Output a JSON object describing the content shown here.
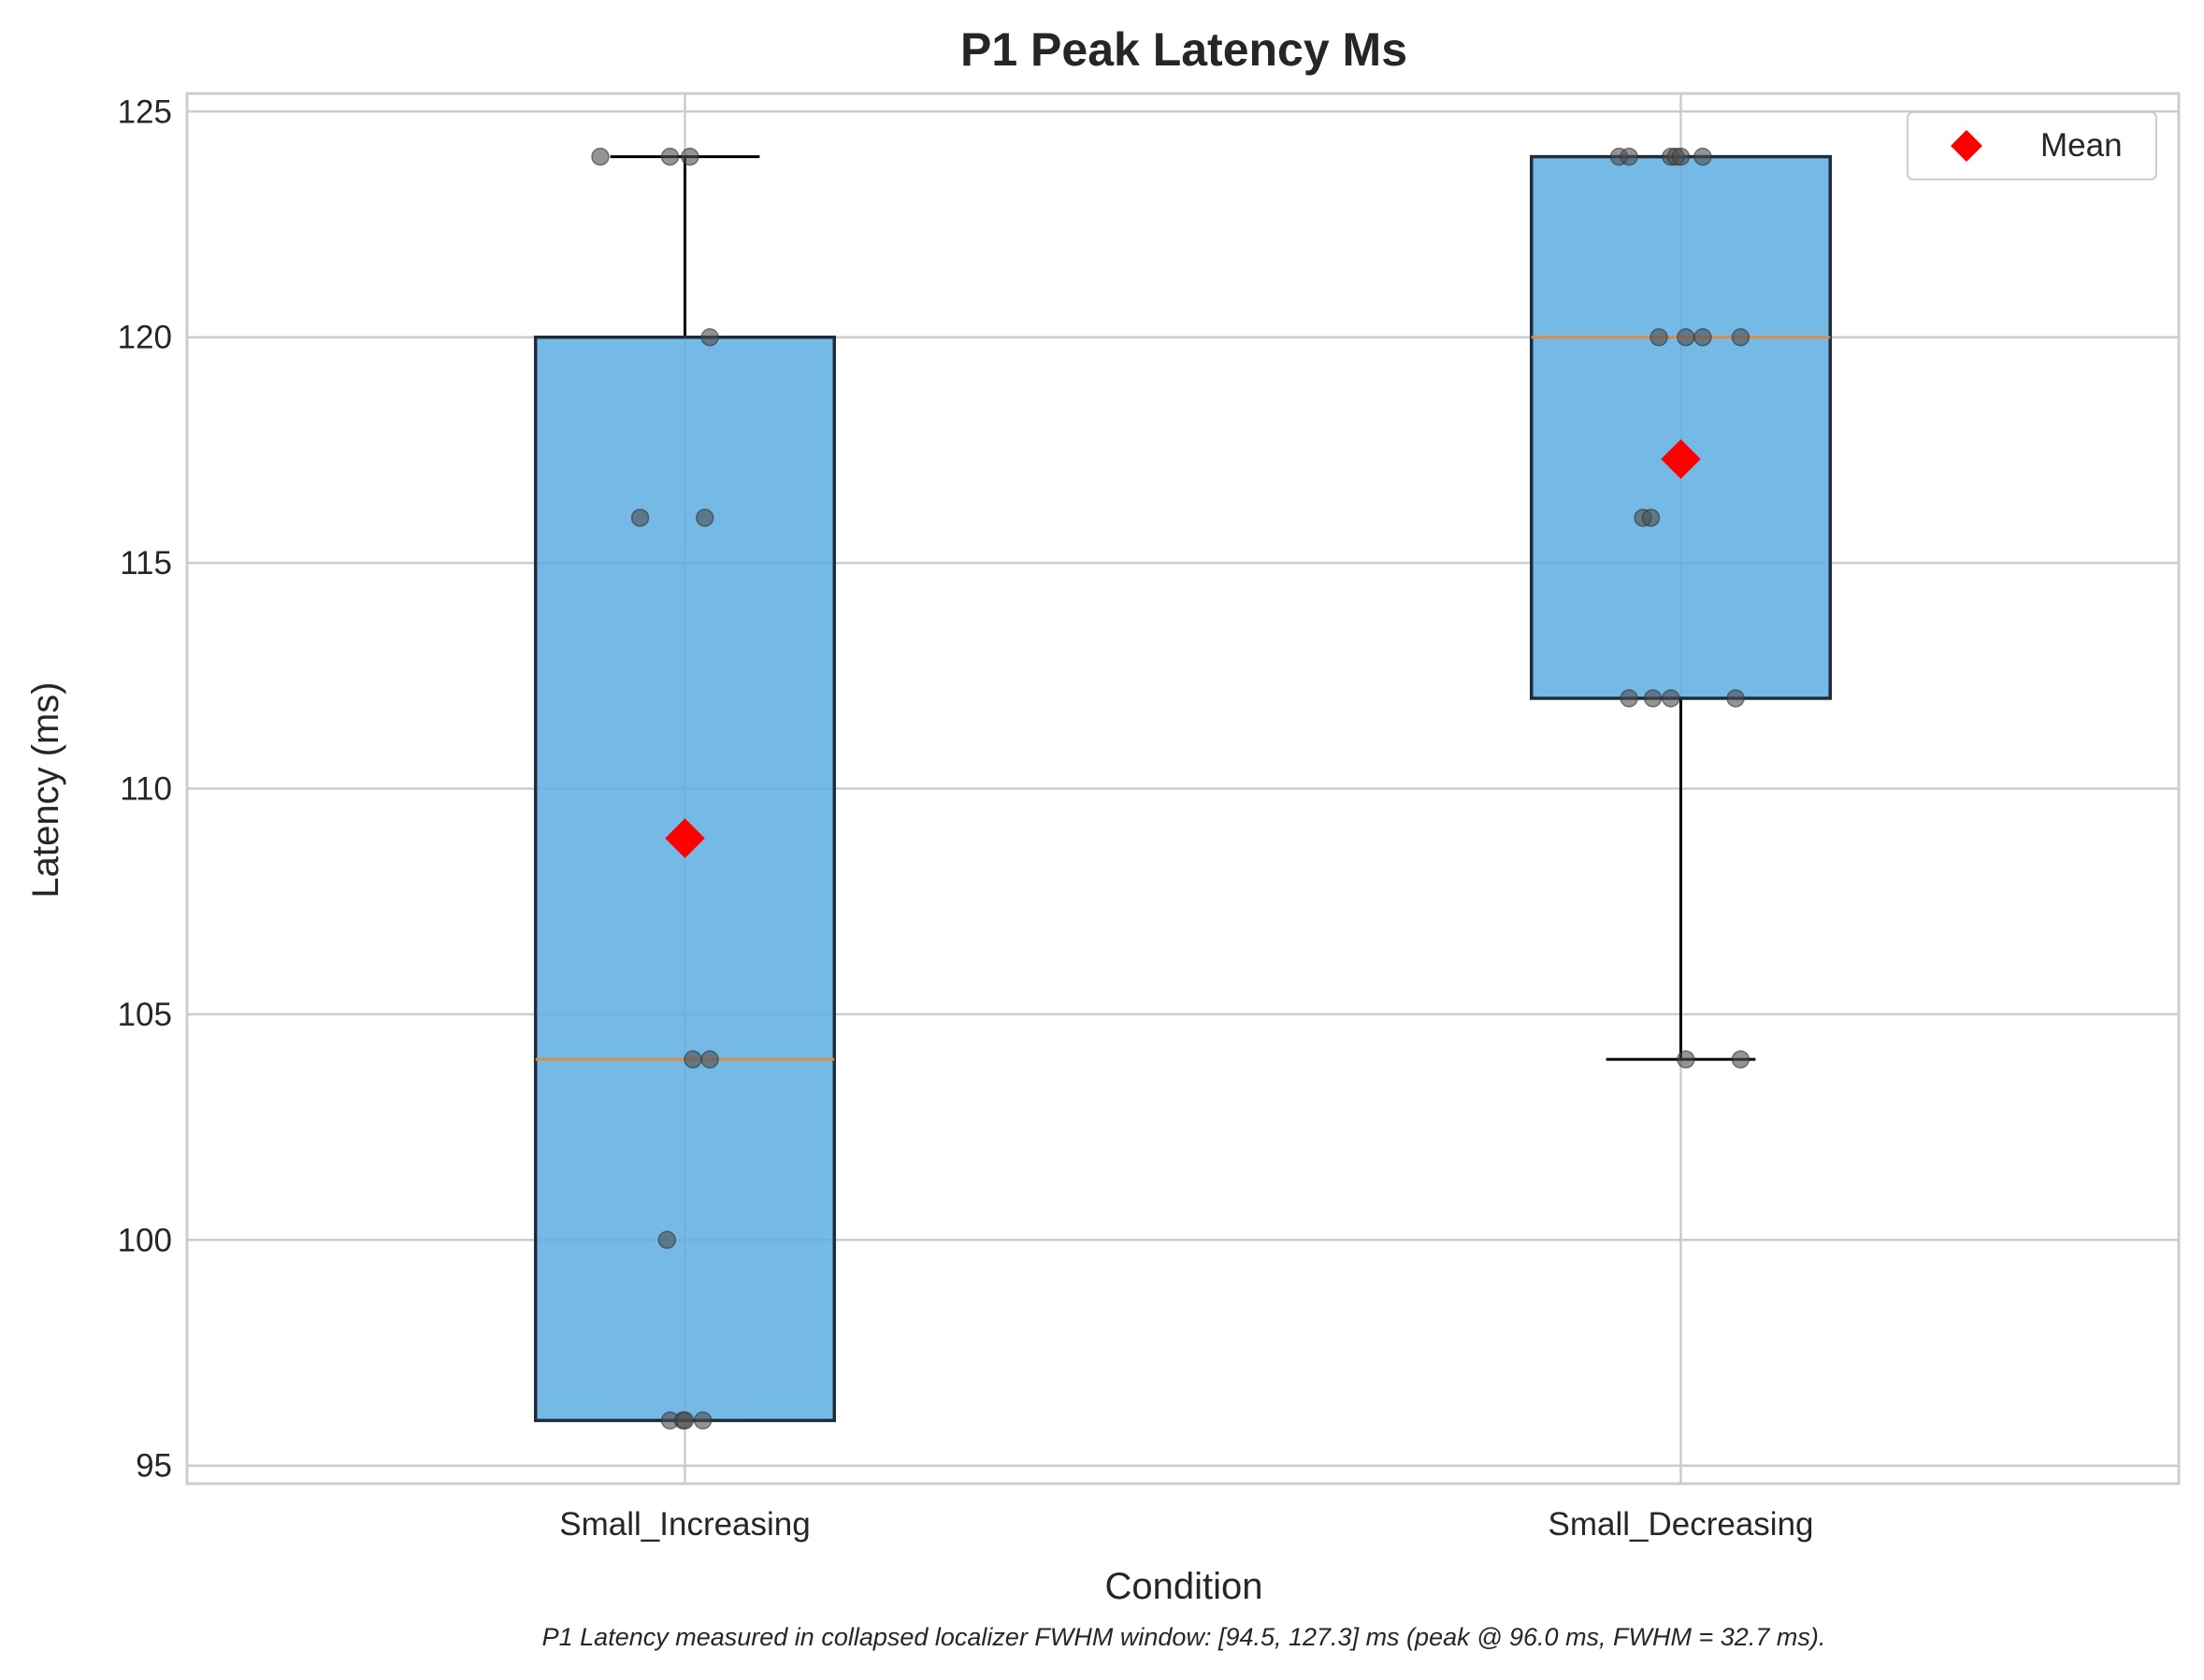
{
  "chart_data": {
    "type": "box",
    "title": "P1 Peak Latency Ms",
    "xlabel": "Condition",
    "ylabel": "Latency (ms)",
    "ylim": [
      94.6,
      125.4
    ],
    "yticks": [
      95,
      100,
      105,
      110,
      115,
      120,
      125
    ],
    "grid": true,
    "legend": {
      "placement": "top-right",
      "entries": [
        {
          "label": "Mean",
          "marker": "red-diamond"
        }
      ]
    },
    "footnote": "P1 Latency measured in collapsed localizer FWHM window: [94.5, 127.3] ms (peak @ 96.0 ms, FWHM = 32.7 ms).",
    "categories": [
      "Small_Increasing",
      "Small_Decreasing"
    ],
    "boxes": [
      {
        "category": "Small_Increasing",
        "whisker_low": 96,
        "q1": 96,
        "median": 104,
        "q3": 120,
        "whisker_high": 124,
        "mean": 108.9,
        "points": [
          {
            "jitter": -0.085,
            "y": 124
          },
          {
            "jitter": -0.015,
            "y": 124
          },
          {
            "jitter": 0.005,
            "y": 124
          },
          {
            "jitter": 0.025,
            "y": 120
          },
          {
            "jitter": -0.045,
            "y": 116
          },
          {
            "jitter": 0.02,
            "y": 116
          },
          {
            "jitter": 0.008,
            "y": 104
          },
          {
            "jitter": 0.025,
            "y": 104
          },
          {
            "jitter": -0.018,
            "y": 100
          },
          {
            "jitter": -0.015,
            "y": 96
          },
          {
            "jitter": -0.002,
            "y": 96
          },
          {
            "jitter": 0.0,
            "y": 96
          },
          {
            "jitter": 0.018,
            "y": 96
          }
        ]
      },
      {
        "category": "Small_Decreasing",
        "whisker_low": 104,
        "q1": 112,
        "median": 120,
        "q3": 124,
        "whisker_high": 124,
        "mean": 117.3,
        "points": [
          {
            "jitter": -0.062,
            "y": 124
          },
          {
            "jitter": -0.052,
            "y": 124
          },
          {
            "jitter": -0.01,
            "y": 124
          },
          {
            "jitter": -0.005,
            "y": 124
          },
          {
            "jitter": 0.0,
            "y": 124
          },
          {
            "jitter": 0.022,
            "y": 124
          },
          {
            "jitter": -0.022,
            "y": 120
          },
          {
            "jitter": 0.005,
            "y": 120
          },
          {
            "jitter": 0.022,
            "y": 120
          },
          {
            "jitter": 0.06,
            "y": 120
          },
          {
            "jitter": -0.038,
            "y": 116
          },
          {
            "jitter": -0.03,
            "y": 116
          },
          {
            "jitter": -0.052,
            "y": 112
          },
          {
            "jitter": -0.028,
            "y": 112
          },
          {
            "jitter": -0.01,
            "y": 112
          },
          {
            "jitter": 0.055,
            "y": 112
          },
          {
            "jitter": 0.005,
            "y": 104
          },
          {
            "jitter": 0.06,
            "y": 104
          }
        ]
      }
    ],
    "colors": {
      "box_fill": "#5dade2",
      "box_edge": "#1f2d3a",
      "median": "#e08a3c",
      "whisker": "#000000",
      "point": "#4d4d4d",
      "mean": "#ff0000",
      "grid": "#cccccc",
      "frame": "#cccccc"
    }
  }
}
